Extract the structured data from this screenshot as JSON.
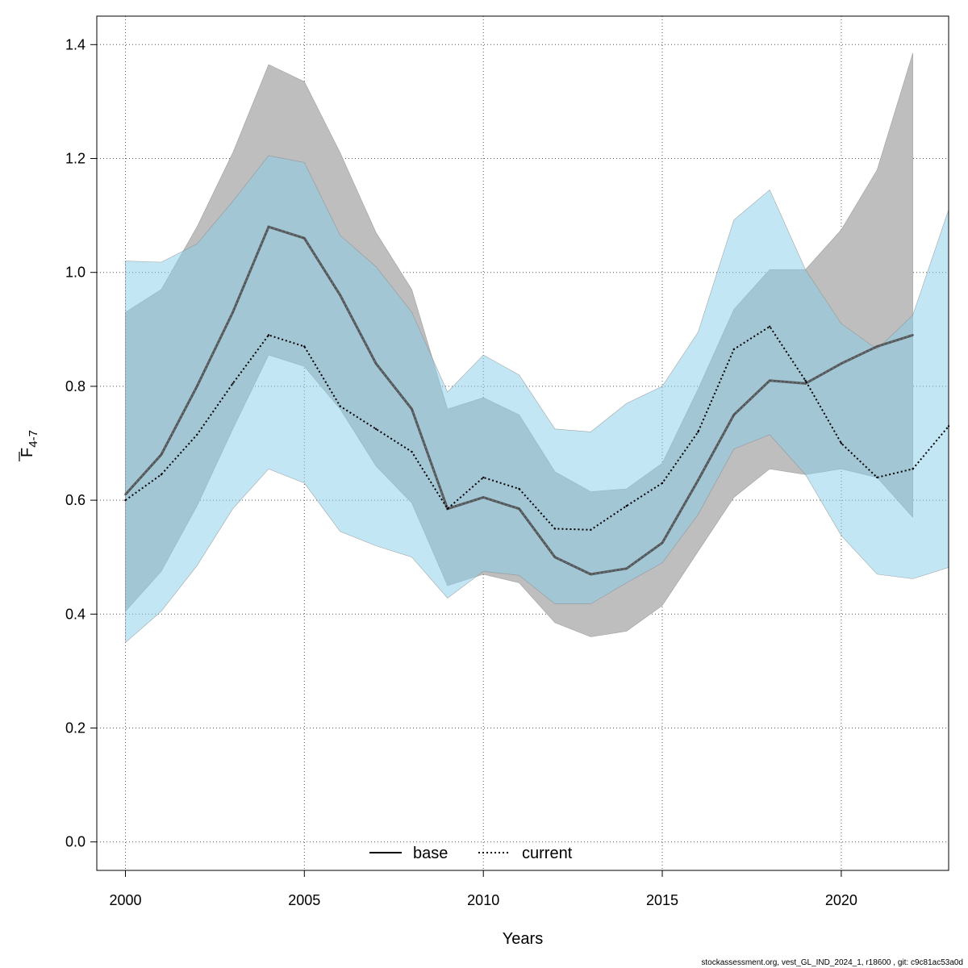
{
  "chart_data": {
    "type": "line",
    "xlabel": "Years",
    "ylabel_main": "F",
    "ylabel_sub": "4-7",
    "xlim": [
      1999.2,
      2023.0
    ],
    "ylim": [
      -0.05,
      1.45
    ],
    "x_ticks": [
      2000,
      2005,
      2010,
      2015,
      2020
    ],
    "y_ticks": [
      0.0,
      0.2,
      0.4,
      0.6,
      0.8,
      1.0,
      1.2,
      1.4
    ],
    "grid": true,
    "legend_placement": "bottom",
    "series": [
      {
        "name": "base",
        "style": "solid",
        "line_color": "#555555",
        "band_color": "#bebebe",
        "x": [
          2000,
          2001,
          2002,
          2003,
          2004,
          2005,
          2006,
          2007,
          2008,
          2009,
          2010,
          2011,
          2012,
          2013,
          2014,
          2015,
          2016,
          2017,
          2018,
          2019,
          2020,
          2021,
          2022
        ],
        "values": [
          0.61,
          0.68,
          0.8,
          0.93,
          1.08,
          1.06,
          0.96,
          0.84,
          0.76,
          0.585,
          0.605,
          0.585,
          0.5,
          0.47,
          0.48,
          0.525,
          0.635,
          0.75,
          0.81,
          0.805,
          0.84,
          0.87,
          0.89
        ],
        "lower": [
          0.405,
          0.475,
          0.59,
          0.725,
          0.855,
          0.835,
          0.76,
          0.66,
          0.595,
          0.45,
          0.47,
          0.455,
          0.385,
          0.36,
          0.37,
          0.415,
          0.51,
          0.605,
          0.655,
          0.645,
          0.655,
          0.64,
          0.57
        ],
        "upper": [
          0.93,
          0.97,
          1.08,
          1.21,
          1.365,
          1.335,
          1.21,
          1.07,
          0.97,
          0.76,
          0.78,
          0.75,
          0.65,
          0.615,
          0.62,
          0.665,
          0.795,
          0.935,
          1.005,
          1.005,
          1.075,
          1.18,
          1.385
        ]
      },
      {
        "name": "current",
        "style": "dotted",
        "line_color": "#000000",
        "band_color": "#87ceeb",
        "x": [
          2000,
          2001,
          2002,
          2003,
          2004,
          2005,
          2006,
          2007,
          2008,
          2009,
          2010,
          2011,
          2012,
          2013,
          2014,
          2015,
          2016,
          2017,
          2018,
          2019,
          2020,
          2021,
          2022,
          2023
        ],
        "values": [
          0.6,
          0.645,
          0.715,
          0.805,
          0.89,
          0.87,
          0.765,
          0.725,
          0.685,
          0.585,
          0.64,
          0.62,
          0.55,
          0.548,
          0.59,
          0.63,
          0.72,
          0.865,
          0.905,
          0.81,
          0.7,
          0.64,
          0.655,
          0.73
        ],
        "lower": [
          0.35,
          0.405,
          0.485,
          0.585,
          0.655,
          0.63,
          0.545,
          0.52,
          0.5,
          0.428,
          0.475,
          0.468,
          0.418,
          0.418,
          0.455,
          0.49,
          0.575,
          0.69,
          0.715,
          0.645,
          0.538,
          0.47,
          0.462,
          0.482
        ],
        "upper": [
          1.02,
          1.018,
          1.05,
          1.125,
          1.205,
          1.193,
          1.065,
          1.01,
          0.93,
          0.79,
          0.855,
          0.82,
          0.725,
          0.72,
          0.77,
          0.8,
          0.895,
          1.092,
          1.145,
          1.005,
          0.91,
          0.865,
          0.925,
          1.11
        ]
      }
    ]
  },
  "footer_text": "stockassessment.org, vest_GL_IND_2024_1, r18600 , git: c9c81ac53a0d"
}
